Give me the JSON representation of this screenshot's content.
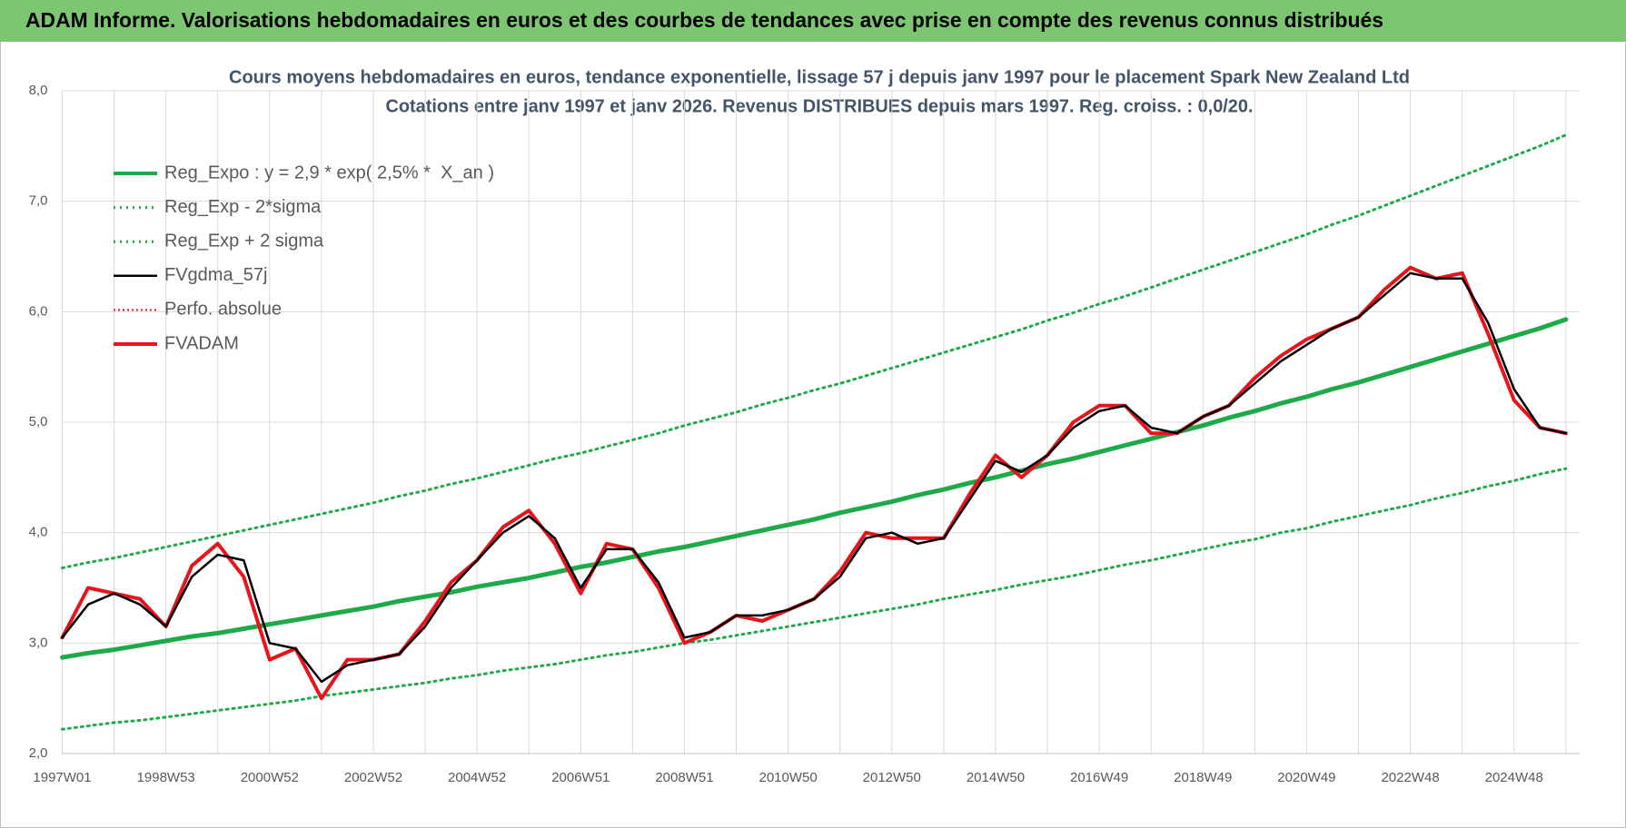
{
  "header": "ADAM Informe. Valorisations hebdomadaires en euros et des courbes de tendances avec prise en compte des revenus connus distribués",
  "chart_data": {
    "type": "line",
    "title": "Cours moyens hebdomadaires en euros, tendance exponentielle, lissage 57 j depuis janv 1997  pour le placement Spark New Zealand Ltd",
    "subtitle": "Cotations entre janv 1997 et janv 2026. Revenus DISTRIBUES depuis mars 1997.  Reg. croiss. : 0,0/20.",
    "categories": [
      "1997W01",
      null,
      null,
      null,
      "1998W53",
      null,
      null,
      null,
      "2000W52",
      null,
      null,
      null,
      "2002W52",
      null,
      null,
      null,
      "2004W52",
      null,
      null,
      null,
      "2006W51",
      null,
      null,
      null,
      "2008W51",
      null,
      null,
      null,
      "2010W50",
      null,
      null,
      null,
      "2012W50",
      null,
      null,
      null,
      "2014W50",
      null,
      null,
      null,
      "2016W49",
      null,
      null,
      null,
      "2018W49",
      null,
      null,
      null,
      "2020W49",
      null,
      null,
      null,
      "2022W48",
      null,
      null,
      null,
      "2024W48",
      null,
      null
    ],
    "ylim": [
      2,
      8
    ],
    "yticks": [
      {
        "value": 2,
        "label": "2,0"
      },
      {
        "value": 3,
        "label": "3,0"
      },
      {
        "value": 4,
        "label": "4,0"
      },
      {
        "value": 5,
        "label": "5,0"
      },
      {
        "value": 6,
        "label": "6,0"
      },
      {
        "value": 7,
        "label": "7,0"
      },
      {
        "value": 8,
        "label": "8,0"
      }
    ],
    "grid": true,
    "legend": "upper-left",
    "series": [
      {
        "name": "Reg_Expo : y = 2,9 * exp( 2,5% *  X_an )",
        "color": "#1faa4a",
        "style": "solid",
        "width": 5,
        "values": [
          2.87,
          2.91,
          2.94,
          2.98,
          3.02,
          3.06,
          3.09,
          3.13,
          3.17,
          3.21,
          3.25,
          3.29,
          3.33,
          3.38,
          3.42,
          3.46,
          3.51,
          3.55,
          3.59,
          3.64,
          3.69,
          3.73,
          3.78,
          3.83,
          3.87,
          3.92,
          3.97,
          4.02,
          4.07,
          4.12,
          4.18,
          4.23,
          4.28,
          4.34,
          4.39,
          4.45,
          4.5,
          4.56,
          4.62,
          4.67,
          4.73,
          4.79,
          4.85,
          4.91,
          4.97,
          5.04,
          5.1,
          5.17,
          5.23,
          5.3,
          5.36,
          5.43,
          5.5,
          5.57,
          5.64,
          5.71,
          5.78,
          5.85,
          5.93
        ]
      },
      {
        "name": "Reg_Exp - 2*sigma",
        "color": "#1faa4a",
        "style": "dotted",
        "width": 3,
        "values": [
          2.22,
          2.25,
          2.28,
          2.3,
          2.33,
          2.36,
          2.39,
          2.42,
          2.45,
          2.48,
          2.52,
          2.55,
          2.58,
          2.61,
          2.64,
          2.68,
          2.71,
          2.75,
          2.78,
          2.81,
          2.85,
          2.89,
          2.92,
          2.96,
          3.0,
          3.03,
          3.07,
          3.11,
          3.15,
          3.19,
          3.23,
          3.27,
          3.31,
          3.35,
          3.4,
          3.44,
          3.48,
          3.53,
          3.57,
          3.61,
          3.66,
          3.71,
          3.75,
          3.8,
          3.85,
          3.9,
          3.94,
          4.0,
          4.04,
          4.1,
          4.15,
          4.2,
          4.25,
          4.31,
          4.36,
          4.42,
          4.47,
          4.53,
          4.58
        ]
      },
      {
        "name": "Reg_Exp + 2 sigma",
        "color": "#1faa4a",
        "style": "dotted",
        "width": 3,
        "values": [
          3.68,
          3.73,
          3.77,
          3.82,
          3.87,
          3.92,
          3.97,
          4.02,
          4.07,
          4.12,
          4.17,
          4.22,
          4.27,
          4.33,
          4.38,
          4.44,
          4.49,
          4.55,
          4.61,
          4.67,
          4.72,
          4.78,
          4.84,
          4.9,
          4.97,
          5.03,
          5.09,
          5.16,
          5.22,
          5.29,
          5.35,
          5.42,
          5.49,
          5.56,
          5.63,
          5.7,
          5.77,
          5.84,
          5.92,
          5.99,
          6.07,
          6.14,
          6.22,
          6.3,
          6.38,
          6.46,
          6.54,
          6.62,
          6.7,
          6.79,
          6.87,
          6.96,
          7.05,
          7.14,
          7.23,
          7.32,
          7.41,
          7.5,
          7.6
        ]
      },
      {
        "name": "FVgdma_57j",
        "color": "#000000",
        "style": "solid",
        "width": 2.5,
        "values": [
          3.05,
          3.35,
          3.45,
          3.35,
          3.15,
          3.6,
          3.8,
          3.75,
          3.0,
          2.95,
          2.65,
          2.8,
          2.85,
          2.9,
          3.15,
          3.5,
          3.75,
          4.0,
          4.15,
          3.95,
          3.5,
          3.85,
          3.85,
          3.55,
          3.05,
          3.1,
          3.25,
          3.25,
          3.3,
          3.4,
          3.6,
          3.95,
          4.0,
          3.9,
          3.95,
          4.3,
          4.65,
          4.55,
          4.7,
          4.95,
          5.1,
          5.15,
          4.95,
          4.9,
          5.05,
          5.15,
          5.35,
          5.55,
          5.7,
          5.85,
          5.95,
          6.15,
          6.35,
          6.3,
          6.3,
          5.9,
          5.3,
          4.95,
          4.9
        ]
      },
      {
        "name": "Perfo. absolue",
        "color": "#e8141c",
        "style": "dotted",
        "width": 2,
        "values": [
          3.05,
          3.5,
          3.45,
          3.4,
          3.15,
          3.7,
          3.9,
          3.6,
          2.85,
          2.95,
          2.5,
          2.85,
          2.85,
          2.9,
          3.2,
          3.55,
          3.75,
          4.05,
          4.2,
          3.9,
          3.45,
          3.9,
          3.85,
          3.5,
          3.0,
          3.1,
          3.25,
          3.2,
          3.3,
          3.4,
          3.65,
          4.0,
          3.95,
          3.95,
          3.95,
          4.35,
          4.7,
          4.5,
          4.7,
          5.0,
          5.15,
          5.15,
          4.9,
          4.9,
          5.05,
          5.15,
          5.4,
          5.6,
          5.75,
          5.85,
          5.95,
          6.2,
          6.4,
          6.3,
          6.35,
          5.8,
          5.2,
          4.95,
          4.9
        ]
      },
      {
        "name": "FVADAM",
        "color": "#e8141c",
        "style": "solid",
        "width": 4,
        "values": [
          3.05,
          3.5,
          3.45,
          3.4,
          3.15,
          3.7,
          3.9,
          3.6,
          2.85,
          2.95,
          2.5,
          2.85,
          2.85,
          2.9,
          3.2,
          3.55,
          3.75,
          4.05,
          4.2,
          3.9,
          3.45,
          3.9,
          3.85,
          3.5,
          3.0,
          3.1,
          3.25,
          3.2,
          3.3,
          3.4,
          3.65,
          4.0,
          3.95,
          3.95,
          3.95,
          4.35,
          4.7,
          4.5,
          4.7,
          5.0,
          5.15,
          5.15,
          4.9,
          4.9,
          5.05,
          5.15,
          5.4,
          5.6,
          5.75,
          5.85,
          5.95,
          6.2,
          6.4,
          6.3,
          6.35,
          5.8,
          5.2,
          4.95,
          4.9
        ]
      }
    ]
  }
}
